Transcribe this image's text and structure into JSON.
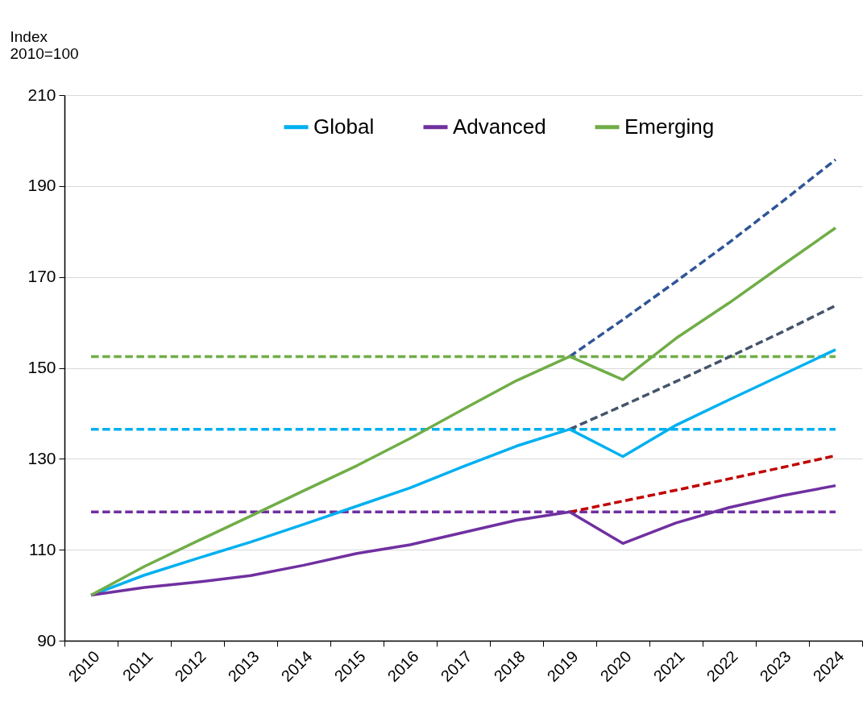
{
  "chart_data": {
    "type": "line",
    "ylabel": "Index\n2010=100",
    "categories": [
      "2010",
      "2011",
      "2012",
      "2013",
      "2014",
      "2015",
      "2016",
      "2017",
      "2018",
      "2019",
      "2020",
      "2021",
      "2022",
      "2023",
      "2024"
    ],
    "ylim": [
      90,
      210
    ],
    "yticks": [
      90,
      110,
      130,
      150,
      170,
      190,
      210
    ],
    "grid": "y",
    "legend": "top",
    "marker": "none",
    "series": [
      {
        "color": "#70ad47",
        "line_style": "dashed",
        "values": [
          152.5,
          152.5,
          152.5,
          152.5,
          152.5,
          152.5,
          152.5,
          152.5,
          152.5,
          152.5,
          152.5,
          152.5,
          152.5,
          152.5,
          152.5
        ]
      },
      {
        "color": "#00b0f0",
        "line_style": "dashed",
        "values": [
          136.5,
          136.5,
          136.5,
          136.5,
          136.5,
          136.5,
          136.5,
          136.5,
          136.5,
          136.5,
          136.5,
          136.5,
          136.5,
          136.5,
          136.5
        ]
      },
      {
        "color": "#7030a0",
        "line_style": "dashed",
        "values": [
          118.3,
          118.3,
          118.3,
          118.3,
          118.3,
          118.3,
          118.3,
          118.3,
          118.3,
          118.3,
          118.3,
          118.3,
          118.3,
          118.3,
          118.3
        ]
      },
      {
        "color": "#2f5597",
        "line_style": "dashed",
        "values": [
          null,
          null,
          null,
          null,
          null,
          null,
          null,
          null,
          null,
          152.5,
          160.6,
          169.0,
          177.6,
          186.6,
          195.8
        ]
      },
      {
        "color": "#44546a",
        "line_style": "dashed",
        "values": [
          null,
          null,
          null,
          null,
          null,
          null,
          null,
          null,
          null,
          136.5,
          141.7,
          147.0,
          152.4,
          157.9,
          163.7
        ]
      },
      {
        "color": "#c00000",
        "line_style": "dashed",
        "values": [
          null,
          null,
          null,
          null,
          null,
          null,
          null,
          null,
          null,
          118.3,
          120.7,
          123.1,
          125.6,
          128.1,
          130.7
        ]
      },
      {
        "name": "Global",
        "color": "#00b0f0",
        "line_style": "solid",
        "values": [
          100,
          104.4,
          108.1,
          111.7,
          115.6,
          119.6,
          123.6,
          128.3,
          132.8,
          136.5,
          130.5,
          137.4,
          143.0,
          148.5,
          154.0
        ]
      },
      {
        "name": "Advanced",
        "color": "#7030a0",
        "line_style": "solid",
        "values": [
          100,
          101.7,
          102.9,
          104.3,
          106.6,
          109.2,
          111.1,
          113.8,
          116.5,
          118.3,
          111.4,
          115.9,
          119.3,
          121.9,
          124.1
        ]
      },
      {
        "name": "Emerging",
        "color": "#70ad47",
        "line_style": "solid",
        "values": [
          100,
          106.3,
          111.9,
          117.4,
          123.0,
          128.5,
          134.5,
          140.9,
          147.2,
          152.5,
          147.4,
          156.5,
          164.3,
          172.6,
          180.8
        ]
      }
    ]
  }
}
